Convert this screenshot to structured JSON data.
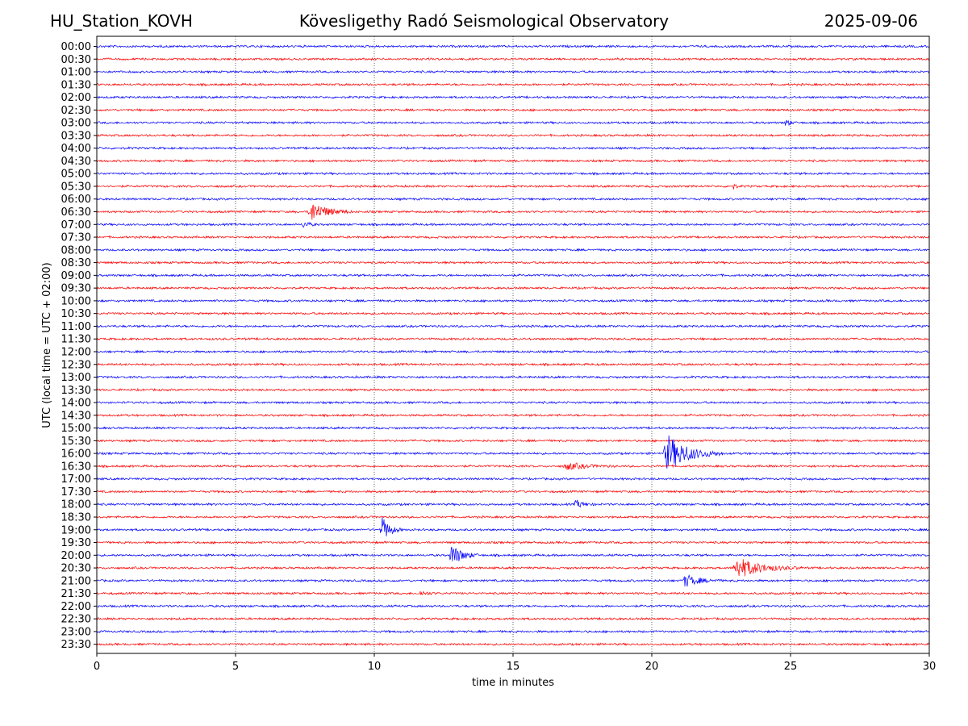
{
  "header": {
    "station": "HU_Station_KOVH",
    "title": "Kövesligethy Radó Seismological Observatory",
    "date": "2025-09-06"
  },
  "chart_data": {
    "type": "line",
    "title": "Kövesligethy Radó Seismological Observatory",
    "xlabel": "time in minutes",
    "ylabel": "UTC (local time = UTC + 02:00)",
    "xlim": [
      0,
      30
    ],
    "x_ticks": [
      0,
      5,
      10,
      15,
      20,
      25,
      30
    ],
    "vertical_grid": "dotted at x ticks",
    "colors": [
      "#0000ff",
      "#ff0000"
    ],
    "rows": [
      "00:00",
      "00:30",
      "01:00",
      "01:30",
      "02:00",
      "02:30",
      "03:00",
      "03:30",
      "04:00",
      "04:30",
      "05:00",
      "05:30",
      "06:00",
      "06:30",
      "07:00",
      "07:30",
      "08:00",
      "08:30",
      "09:00",
      "09:30",
      "10:00",
      "10:30",
      "11:00",
      "11:30",
      "12:00",
      "12:30",
      "13:00",
      "13:30",
      "14:00",
      "14:30",
      "15:00",
      "15:30",
      "16:00",
      "16:30",
      "17:00",
      "17:30",
      "18:00",
      "18:30",
      "19:00",
      "19:30",
      "20:00",
      "20:30",
      "21:00",
      "21:30",
      "22:00",
      "22:30",
      "23:00",
      "23:30"
    ],
    "events": [
      {
        "row": "03:00",
        "start_min": 24.8,
        "duration_min": 0.4,
        "amplitude": 0.4
      },
      {
        "row": "05:30",
        "start_min": 22.9,
        "duration_min": 0.3,
        "amplitude": 0.3
      },
      {
        "row": "06:30",
        "start_min": 7.6,
        "duration_min": 1.6,
        "amplitude": 0.9
      },
      {
        "row": "07:00",
        "start_min": 7.4,
        "duration_min": 0.6,
        "amplitude": 0.3
      },
      {
        "row": "16:00",
        "start_min": 20.4,
        "duration_min": 2.2,
        "amplitude": 1.6
      },
      {
        "row": "16:30",
        "start_min": 16.8,
        "duration_min": 2.0,
        "amplitude": 0.3
      },
      {
        "row": "18:00",
        "start_min": 17.2,
        "duration_min": 0.8,
        "amplitude": 0.35
      },
      {
        "row": "19:00",
        "start_min": 10.2,
        "duration_min": 0.8,
        "amplitude": 1.2
      },
      {
        "row": "20:00",
        "start_min": 12.7,
        "duration_min": 1.1,
        "amplitude": 1.0
      },
      {
        "row": "20:30",
        "start_min": 22.9,
        "duration_min": 2.5,
        "amplitude": 0.9
      },
      {
        "row": "21:00",
        "start_min": 21.1,
        "duration_min": 1.4,
        "amplitude": 0.55
      },
      {
        "row": "21:30",
        "start_min": 11.6,
        "duration_min": 0.8,
        "amplitude": 0.2
      }
    ]
  }
}
